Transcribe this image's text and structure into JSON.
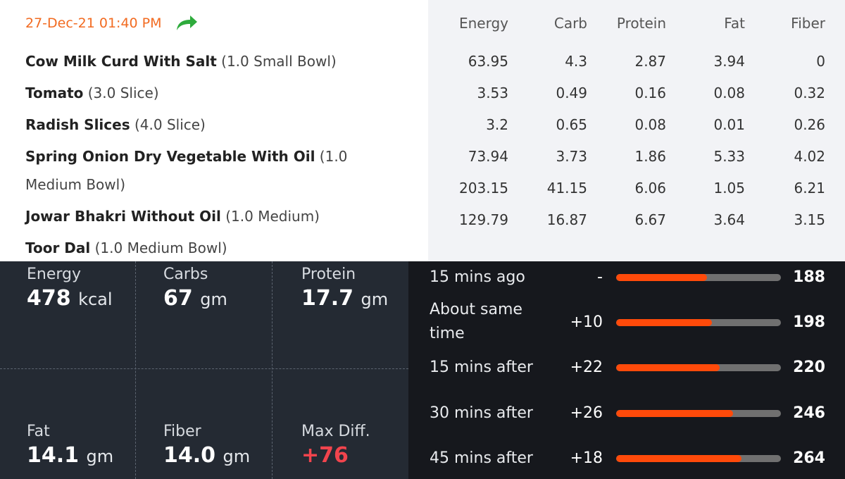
{
  "meal": {
    "time": "27-Dec-21 01:40 PM",
    "share_icon": "share-arrow-icon",
    "share_color": "#2eab3c",
    "items": [
      {
        "name": "Cow Milk Curd With Salt",
        "qty": "(1.0 Small Bowl)"
      },
      {
        "name": "Tomato",
        "qty": "(3.0 Slice)"
      },
      {
        "name": "Radish Slices",
        "qty": "(4.0 Slice)"
      },
      {
        "name": "Spring Onion Dry Vegetable With Oil",
        "qty": "(1.0",
        "qty_cont": "Medium Bowl)"
      },
      {
        "name": "Jowar Bhakri Without Oil",
        "qty": "(1.0 Medium)"
      },
      {
        "name": "Toor Dal",
        "qty": "(1.0 Medium Bowl)"
      }
    ]
  },
  "nutrients": {
    "columns": [
      "Energy",
      "Carb",
      "Protein",
      "Fat",
      "Fiber"
    ],
    "rows": [
      [
        "63.95",
        "4.3",
        "2.87",
        "3.94",
        "0"
      ],
      [
        "3.53",
        "0.49",
        "0.16",
        "0.08",
        "0.32"
      ],
      [
        "3.2",
        "0.65",
        "0.08",
        "0.01",
        "0.26"
      ],
      [
        "73.94",
        "3.73",
        "1.86",
        "5.33",
        "4.02"
      ],
      [
        "203.15",
        "41.15",
        "6.06",
        "1.05",
        "6.21"
      ],
      [
        "129.79",
        "16.87",
        "6.67",
        "3.64",
        "3.15"
      ]
    ]
  },
  "summary": {
    "energy": {
      "label": "Energy",
      "value": "478",
      "unit": "kcal"
    },
    "carbs": {
      "label": "Carbs",
      "value": "67",
      "unit": "gm"
    },
    "protein": {
      "label": "Protein",
      "value": "17.7",
      "unit": "gm"
    },
    "fat": {
      "label": "Fat",
      "value": "14.1",
      "unit": "gm"
    },
    "fiber": {
      "label": "Fiber",
      "value": "14.0",
      "unit": "gm"
    },
    "max_diff": {
      "label": "Max Diff.",
      "value": "+76"
    }
  },
  "glucose": {
    "accent_color": "#ff4a0a",
    "rows": [
      {
        "label": "15 mins ago",
        "diff": "-",
        "value": "188",
        "fill": 0.55
      },
      {
        "label": "About same time",
        "diff": "+10",
        "value": "198",
        "fill": 0.58
      },
      {
        "label": "15 mins after",
        "diff": "+22",
        "value": "220",
        "fill": 0.63
      },
      {
        "label": "30 mins after",
        "diff": "+26",
        "value": "246",
        "fill": 0.71
      },
      {
        "label": "45 mins after",
        "diff": "+18",
        "value": "264",
        "fill": 0.76
      }
    ]
  }
}
